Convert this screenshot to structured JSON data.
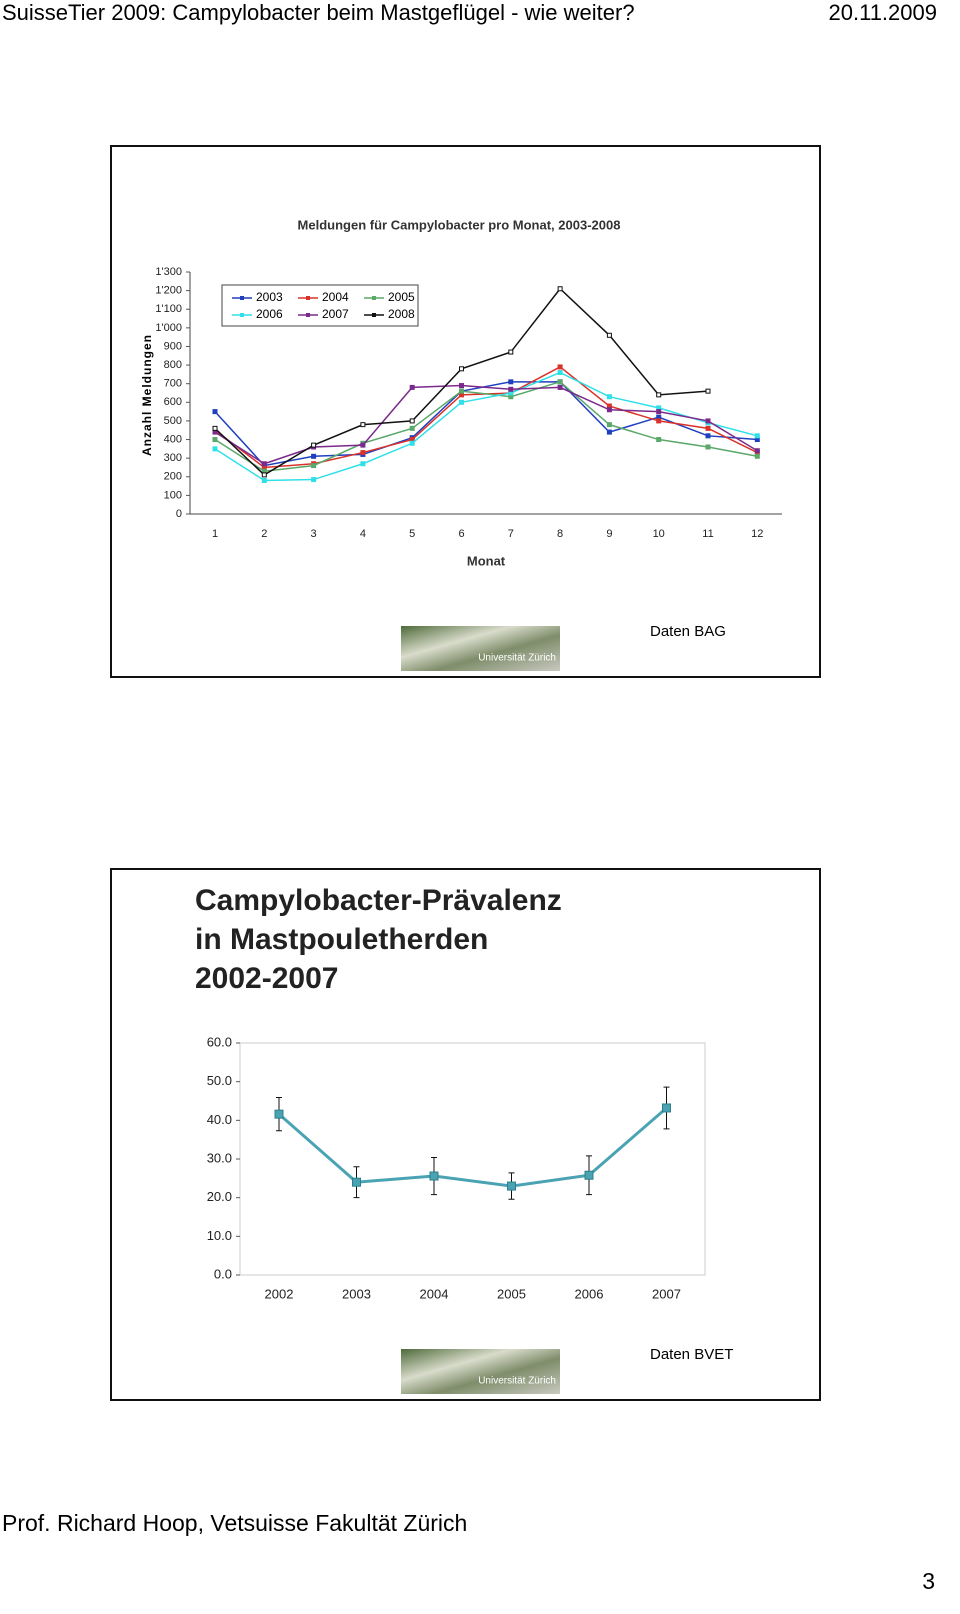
{
  "header": {
    "title": "SuisseTier 2009: Campylobacter beim Mastgeflügel - wie weiter?",
    "date": "20.11.2009"
  },
  "footer": {
    "author": "Prof. Richard Hoop, Vetsuisse Fakultät Zürich",
    "page": "3"
  },
  "chart_data": [
    {
      "type": "line",
      "title": "Meldungen für Campylobacter pro Monat, 2003-2008",
      "x_label": "Monat",
      "y_label": "Anzahl Meldungen",
      "categories": [
        "1",
        "2",
        "3",
        "4",
        "5",
        "6",
        "7",
        "8",
        "9",
        "10",
        "11",
        "12"
      ],
      "ylim": [
        0,
        1300
      ],
      "yticks": [
        0,
        100,
        200,
        300,
        400,
        500,
        600,
        700,
        800,
        900,
        {
          "value": 1000,
          "label": "1'000"
        },
        {
          "value": 1100,
          "label": "1'100"
        },
        {
          "value": 1200,
          "label": "1'200"
        },
        {
          "value": 1300,
          "label": "1'300"
        }
      ],
      "grid": false,
      "legend": "top-left",
      "series": [
        {
          "name": "2003",
          "color": "#1f3fbf",
          "values": [
            550,
            260,
            310,
            320,
            410,
            660,
            710,
            710,
            440,
            520,
            420,
            400
          ]
        },
        {
          "name": "2004",
          "color": "#d9322a",
          "values": [
            450,
            250,
            270,
            330,
            400,
            640,
            650,
            790,
            580,
            500,
            460,
            330
          ]
        },
        {
          "name": "2005",
          "color": "#5aa86a",
          "values": [
            400,
            230,
            260,
            380,
            460,
            660,
            630,
            710,
            480,
            400,
            360,
            310
          ]
        },
        {
          "name": "2006",
          "color": "#2fe0e8",
          "values": [
            350,
            180,
            185,
            270,
            380,
            600,
            650,
            760,
            630,
            570,
            490,
            420
          ]
        },
        {
          "name": "2007",
          "color": "#7b2a8c",
          "values": [
            440,
            270,
            360,
            370,
            680,
            690,
            670,
            680,
            560,
            550,
            500,
            340
          ]
        },
        {
          "name": "2008",
          "color": "#111111",
          "values": [
            460,
            210,
            370,
            480,
            500,
            780,
            870,
            1210,
            960,
            640,
            660,
            null
          ]
        }
      ],
      "source": "Daten BAG",
      "logo_text": "Universität Zürich"
    },
    {
      "type": "errorline",
      "title_lines": [
        "Campylobacter-Prävalenz",
        "in Mastpouletherden",
        "2002-2007"
      ],
      "categories": [
        "2002",
        "2003",
        "2004",
        "2005",
        "2006",
        "2007"
      ],
      "ylim": [
        0,
        60
      ],
      "yticks": [
        {
          "value": 0,
          "label": "0.0"
        },
        {
          "value": 10,
          "label": "10.0"
        },
        {
          "value": 20,
          "label": "20.0"
        },
        {
          "value": 30,
          "label": "30.0"
        },
        {
          "value": 40,
          "label": "40.0"
        },
        {
          "value": 50,
          "label": "50.0"
        },
        {
          "value": 60,
          "label": "60.0"
        }
      ],
      "grid": false,
      "series": [
        {
          "color": "#4aa3b3",
          "values": [
            41.6,
            24.0,
            25.6,
            23.0,
            25.8,
            43.2
          ],
          "errors": [
            4.3,
            4.0,
            4.8,
            3.4,
            5.0,
            5.4
          ]
        }
      ],
      "source": "Daten BVET",
      "logo_text": "Universität Zürich"
    }
  ]
}
